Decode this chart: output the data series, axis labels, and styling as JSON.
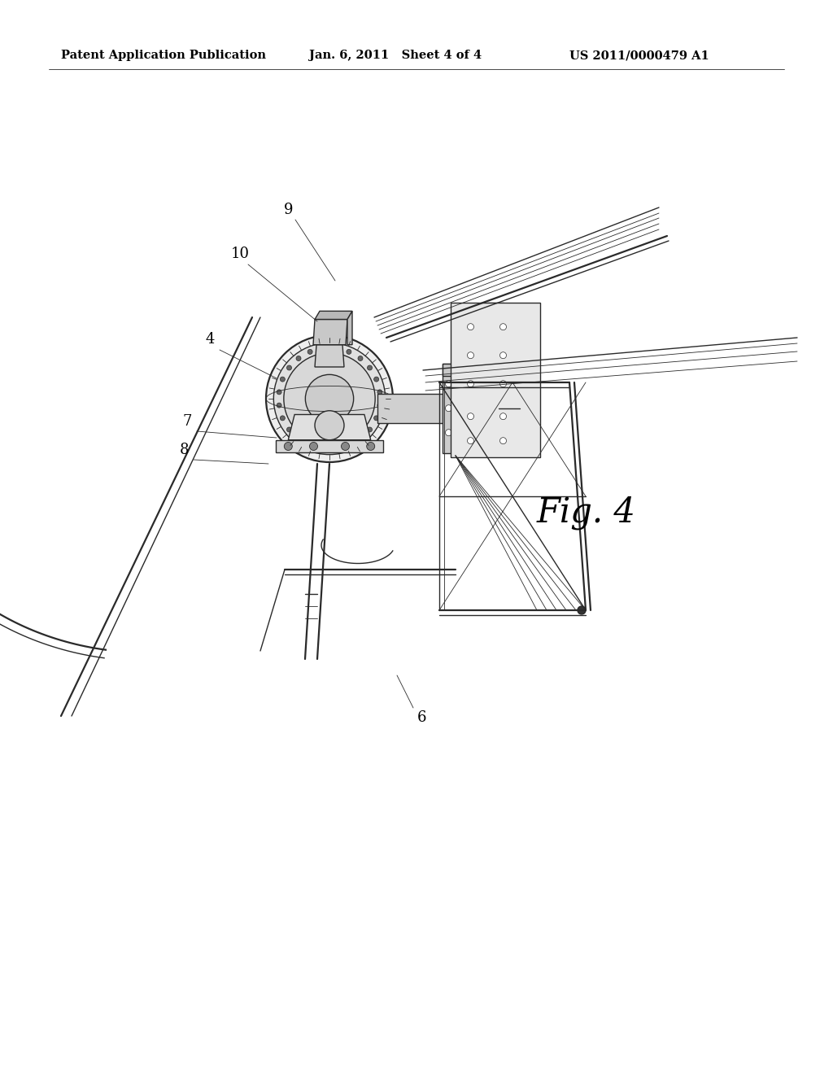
{
  "bg_color": "#ffffff",
  "header_left": "Patent Application Publication",
  "header_center": "Jan. 6, 2011   Sheet 4 of 4",
  "header_right": "US 2011/0000479 A1",
  "figure_label": "Fig. 4",
  "line_color": "#2a2a2a",
  "text_color": "#000000",
  "header_fontsize": 10.5,
  "label_fontsize": 13,
  "fig_label_fontsize": 30,
  "lw_thin": 0.6,
  "lw_med": 1.0,
  "lw_thick": 1.6,
  "lw_vthick": 2.2
}
